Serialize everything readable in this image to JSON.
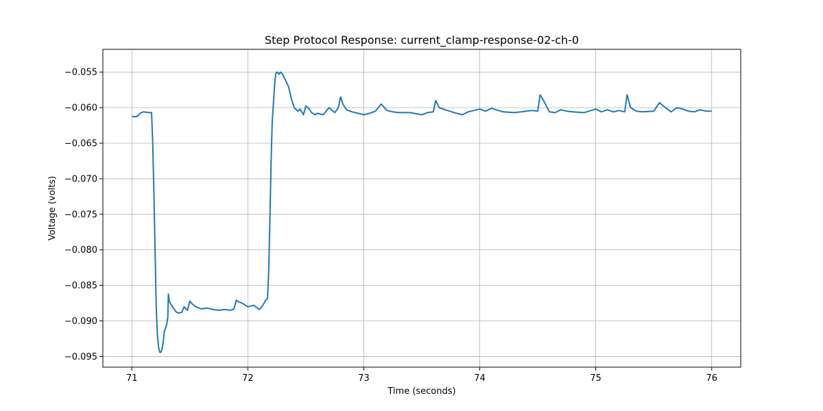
{
  "chart_data": {
    "type": "line",
    "title": "Step Protocol Response: current_clamp-response-02-ch-0",
    "xlabel": "Time (seconds)",
    "ylabel": "Voltage (volts)",
    "xlim": [
      70.75,
      76.25
    ],
    "ylim": [
      -0.0965,
      -0.0518
    ],
    "xticks": [
      71,
      72,
      73,
      74,
      75,
      76
    ],
    "yticks": [
      -0.095,
      -0.09,
      -0.085,
      -0.08,
      -0.075,
      -0.07,
      -0.065,
      -0.06,
      -0.055
    ],
    "grid": true,
    "legend": "none",
    "series": [
      {
        "color": "#1f77b4",
        "x": [
          71.0,
          71.02,
          71.05,
          71.07,
          71.1,
          71.15,
          71.17,
          71.18,
          71.19,
          71.2,
          71.21,
          71.22,
          71.23,
          71.24,
          71.25,
          71.26,
          71.27,
          71.28,
          71.29,
          71.3,
          71.31,
          71.315,
          71.32,
          71.33,
          71.35,
          71.38,
          71.4,
          71.43,
          71.45,
          71.48,
          71.5,
          71.52,
          71.55,
          71.6,
          71.65,
          71.7,
          71.75,
          71.8,
          71.85,
          71.88,
          71.9,
          71.92,
          71.95,
          72.0,
          72.05,
          72.1,
          72.13,
          72.15,
          72.17,
          72.18,
          72.19,
          72.2,
          72.21,
          72.22,
          72.23,
          72.24,
          72.25,
          72.27,
          72.28,
          72.3,
          72.32,
          72.35,
          72.38,
          72.4,
          72.43,
          72.45,
          72.48,
          72.5,
          72.52,
          72.55,
          72.58,
          72.6,
          72.65,
          72.7,
          72.75,
          72.78,
          72.8,
          72.82,
          72.85,
          72.9,
          72.95,
          73.0,
          73.05,
          73.1,
          73.15,
          73.2,
          73.25,
          73.3,
          73.4,
          73.5,
          73.55,
          73.6,
          73.62,
          73.65,
          73.7,
          73.8,
          73.85,
          73.9,
          74.0,
          74.05,
          74.1,
          74.2,
          74.3,
          74.4,
          74.45,
          74.5,
          74.52,
          74.55,
          74.6,
          74.65,
          74.7,
          74.75,
          74.8,
          74.9,
          75.0,
          75.05,
          75.1,
          75.15,
          75.2,
          75.25,
          75.27,
          75.3,
          75.35,
          75.4,
          75.5,
          75.55,
          75.6,
          75.65,
          75.7,
          75.75,
          75.8,
          75.85,
          75.9,
          75.95,
          76.0
        ],
        "y": [
          -0.0612,
          -0.0613,
          -0.0612,
          -0.0608,
          -0.0606,
          -0.0607,
          -0.0607,
          -0.065,
          -0.072,
          -0.08,
          -0.088,
          -0.092,
          -0.0937,
          -0.0944,
          -0.0944,
          -0.094,
          -0.093,
          -0.0915,
          -0.091,
          -0.0905,
          -0.0895,
          -0.0862,
          -0.087,
          -0.0875,
          -0.088,
          -0.0887,
          -0.0889,
          -0.0888,
          -0.088,
          -0.0885,
          -0.0872,
          -0.0876,
          -0.088,
          -0.0883,
          -0.0882,
          -0.0884,
          -0.0885,
          -0.0884,
          -0.0885,
          -0.0883,
          -0.0871,
          -0.0873,
          -0.0875,
          -0.088,
          -0.0878,
          -0.0884,
          -0.0878,
          -0.0872,
          -0.0868,
          -0.083,
          -0.076,
          -0.068,
          -0.062,
          -0.0595,
          -0.057,
          -0.0553,
          -0.055,
          -0.0553,
          -0.055,
          -0.0553,
          -0.056,
          -0.057,
          -0.059,
          -0.06,
          -0.0605,
          -0.0602,
          -0.061,
          -0.0598,
          -0.06,
          -0.0607,
          -0.061,
          -0.0608,
          -0.061,
          -0.06,
          -0.0607,
          -0.06,
          -0.0585,
          -0.0595,
          -0.0603,
          -0.0606,
          -0.0608,
          -0.061,
          -0.0608,
          -0.0605,
          -0.0595,
          -0.0604,
          -0.0606,
          -0.0607,
          -0.0607,
          -0.061,
          -0.0607,
          -0.0606,
          -0.059,
          -0.06,
          -0.0603,
          -0.0608,
          -0.061,
          -0.0606,
          -0.0602,
          -0.0605,
          -0.0601,
          -0.0606,
          -0.0607,
          -0.0605,
          -0.0604,
          -0.0605,
          -0.0582,
          -0.059,
          -0.0606,
          -0.0607,
          -0.0603,
          -0.0605,
          -0.0606,
          -0.0607,
          -0.0602,
          -0.0606,
          -0.0603,
          -0.0606,
          -0.0604,
          -0.0606,
          -0.0582,
          -0.06,
          -0.0605,
          -0.0606,
          -0.0605,
          -0.0593,
          -0.06,
          -0.0606,
          -0.06,
          -0.0602,
          -0.0605,
          -0.0606,
          -0.0603,
          -0.0605,
          -0.0605
        ]
      }
    ]
  }
}
